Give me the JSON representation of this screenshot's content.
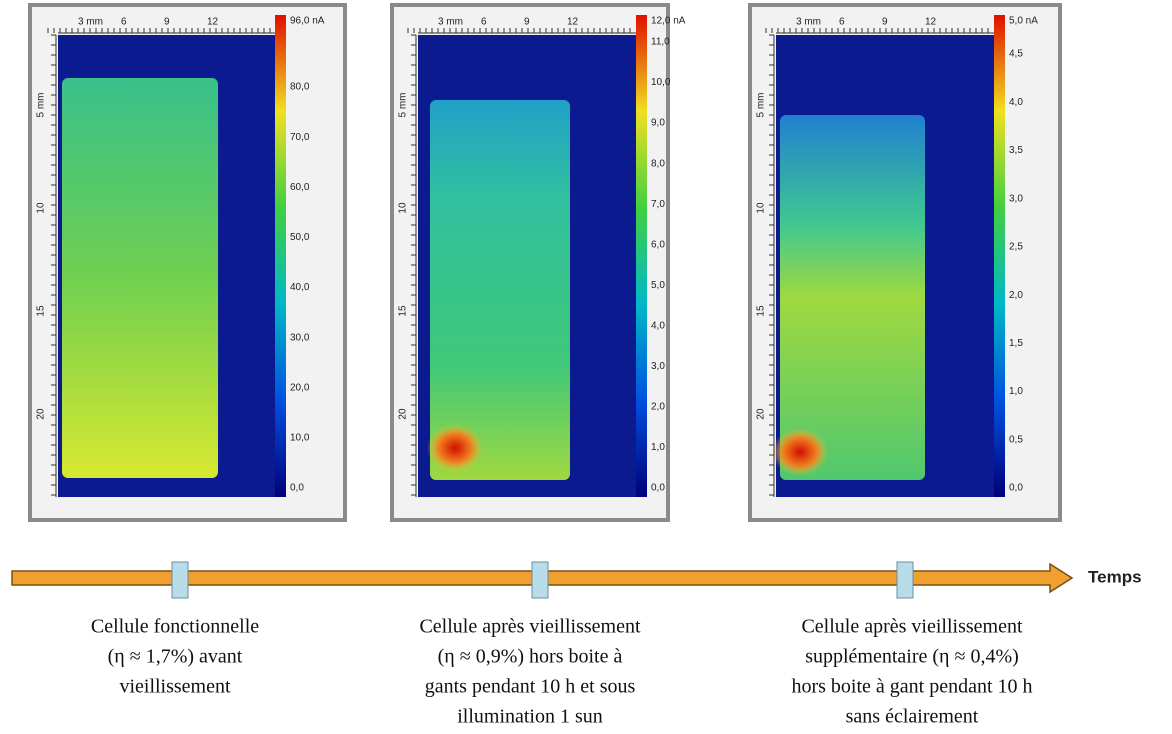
{
  "panels": [
    {
      "top_ruler": [
        "3 mm",
        "6",
        "9",
        "12"
      ],
      "left_ruler": [
        "5 mm",
        "10",
        "15",
        "20"
      ],
      "colorbar": [
        "96,0 nA",
        "80,0",
        "70,0",
        "60,0",
        "50,0",
        "40,0",
        "30,0",
        "20,0",
        "10,0",
        "0,0"
      ]
    },
    {
      "top_ruler": [
        "3 mm",
        "6",
        "9",
        "12"
      ],
      "left_ruler": [
        "5 mm",
        "10",
        "15",
        "20"
      ],
      "colorbar": [
        "12,0 nA",
        "11,0",
        "10,0",
        "9,0",
        "8,0",
        "7,0",
        "6,0",
        "5,0",
        "4,0",
        "3,0",
        "2,0",
        "1,0",
        "0,0"
      ]
    },
    {
      "top_ruler": [
        "3 mm",
        "6",
        "9",
        "12"
      ],
      "left_ruler": [
        "5 mm",
        "10",
        "15",
        "20"
      ],
      "colorbar": [
        "5,0 nA",
        "4,5",
        "4,0",
        "3,5",
        "3,0",
        "2,5",
        "2,0",
        "1,5",
        "1,0",
        "0,5",
        "0,0"
      ]
    }
  ],
  "timeline": {
    "label": "Temps",
    "captions": [
      [
        "Cellule fonctionnelle",
        "(η ≈ 1,7%) avant",
        "vieillissement"
      ],
      [
        "Cellule après vieillissement",
        "(η ≈ 0,9%) hors boite à",
        "gants pendant 10 h et sous",
        "illumination 1 sun"
      ],
      [
        "Cellule après vieillissement",
        "supplémentaire (η ≈ 0,4%)",
        "hors boite à gant pendant 10 h",
        "sans éclairement"
      ]
    ]
  }
}
